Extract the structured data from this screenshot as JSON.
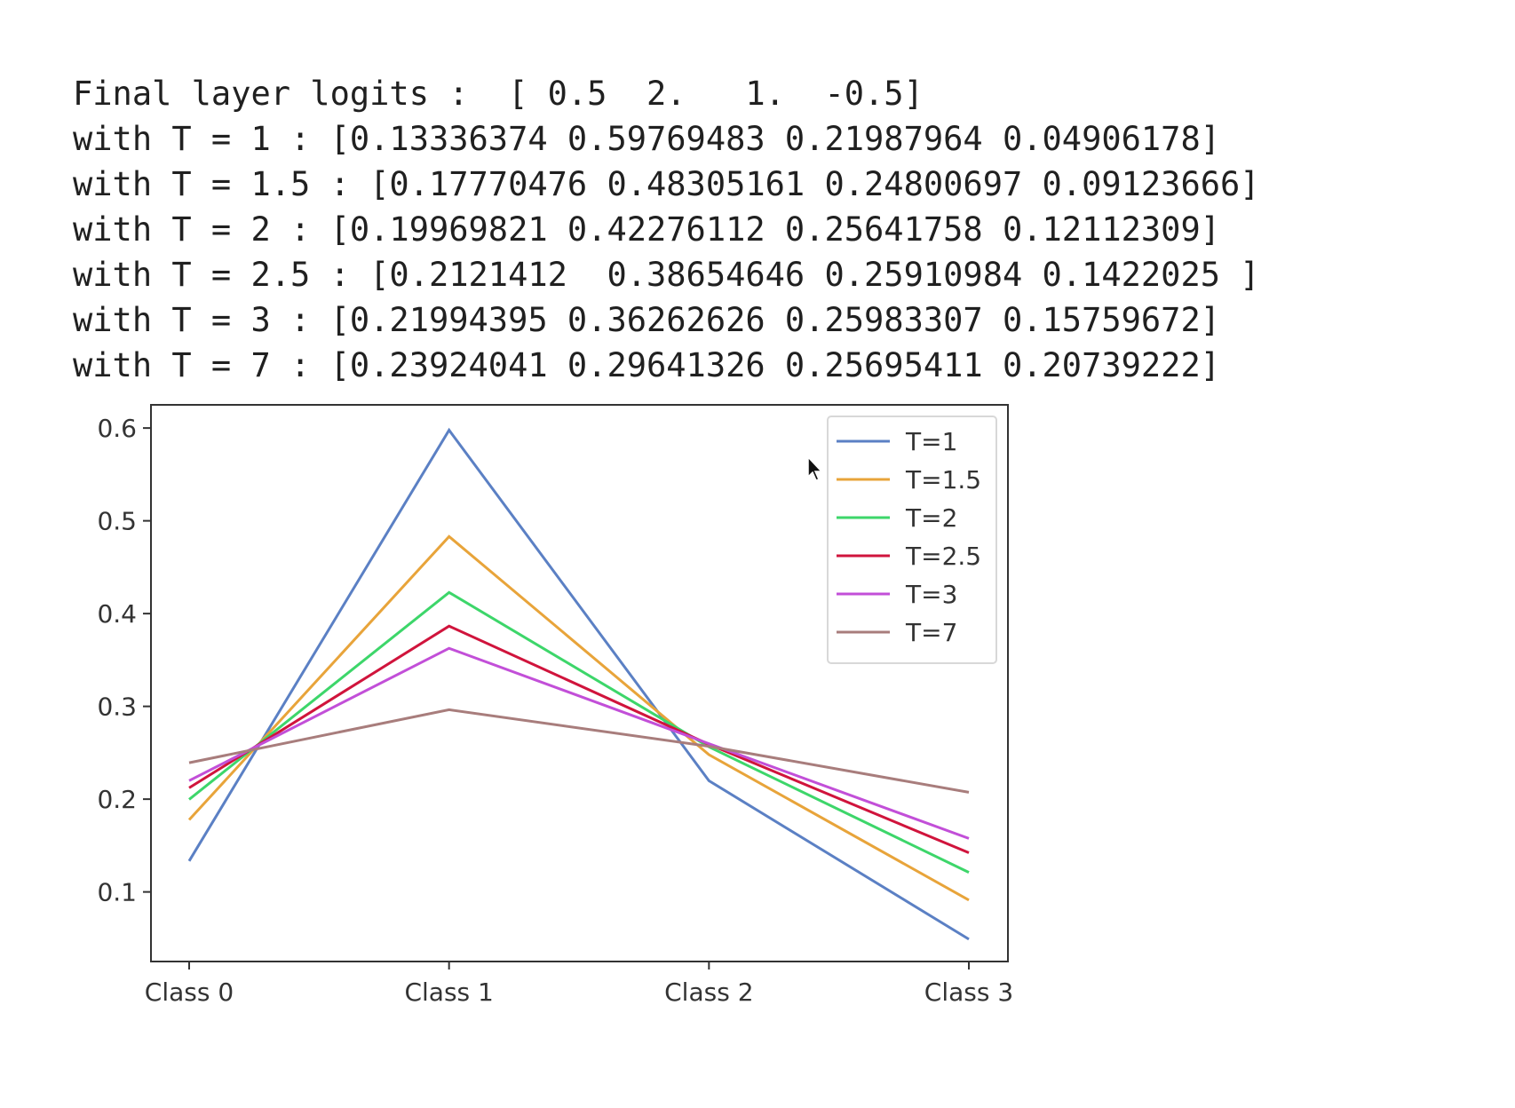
{
  "output": {
    "lines": [
      "Final layer logits :  [ 0.5  2.   1.  -0.5]",
      "with T = 1 : [0.13336374 0.59769483 0.21987964 0.04906178]",
      "with T = 1.5 : [0.17770476 0.48305161 0.24800697 0.09123666]",
      "with T = 2 : [0.19969821 0.42276112 0.25641758 0.12112309]",
      "with T = 2.5 : [0.2121412  0.38654646 0.25910984 0.1422025 ]",
      "with T = 3 : [0.21994395 0.36262626 0.25983307 0.15759672]",
      "with T = 7 : [0.23924041 0.29641326 0.25695411 0.20739222]"
    ]
  },
  "chart_data": {
    "type": "line",
    "categories": [
      "Class 0",
      "Class 1",
      "Class 2",
      "Class 3"
    ],
    "yticks": [
      "0.1",
      "0.2",
      "0.3",
      "0.4",
      "0.5",
      "0.6"
    ],
    "ylim": [
      0.025,
      0.625
    ],
    "legend_position": "top-right",
    "grid": false,
    "series": [
      {
        "name": "T=1",
        "color": "#5b80c4",
        "values": [
          0.13336374,
          0.59769483,
          0.21987964,
          0.04906178
        ]
      },
      {
        "name": "T=1.5",
        "color": "#e8a43a",
        "values": [
          0.17770476,
          0.48305161,
          0.24800697,
          0.09123666
        ]
      },
      {
        "name": "T=2",
        "color": "#3dd66a",
        "values": [
          0.19969821,
          0.42276112,
          0.25641758,
          0.12112309
        ]
      },
      {
        "name": "T=2.5",
        "color": "#d0143c",
        "values": [
          0.2121412,
          0.38654646,
          0.25910984,
          0.1422025
        ]
      },
      {
        "name": "T=3",
        "color": "#c24fd8",
        "values": [
          0.21994395,
          0.36262626,
          0.25983307,
          0.15759672
        ]
      },
      {
        "name": "T=7",
        "color": "#a87d7c",
        "values": [
          0.23924041,
          0.29641326,
          0.25695411,
          0.20739222
        ]
      }
    ]
  }
}
